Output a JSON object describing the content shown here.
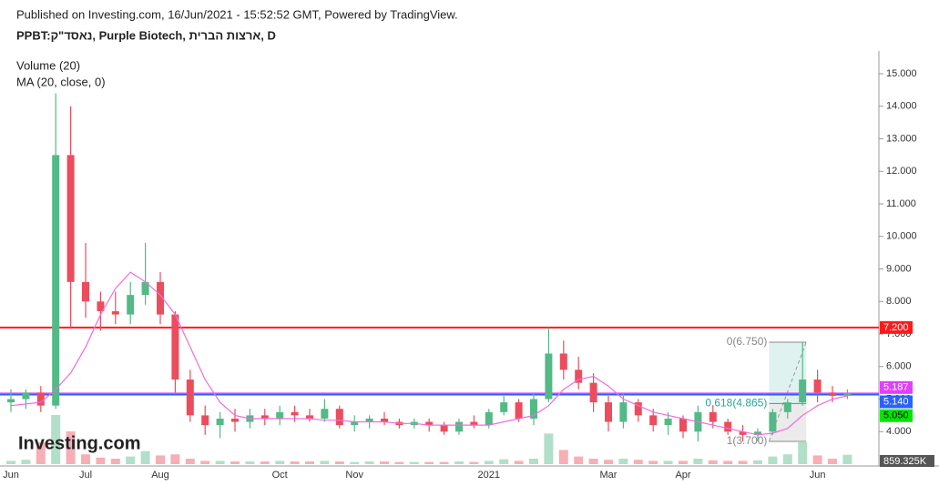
{
  "header": "Published on Investing.com, 16/Jun/2021 - 15:52:52 GMT, Powered by TradingView.",
  "symbol": "PPBT:נאסד\"ק, Purple Biotech, ארצות הברית, D",
  "logo": "Investing.com",
  "chart_data": {
    "type": "candlestick",
    "legend": [
      "Volume (20)",
      "MA (20, close, 0)"
    ],
    "categories": [
      "Jun",
      null,
      null,
      null,
      null,
      "Jul",
      null,
      null,
      null,
      null,
      "Aug",
      null,
      null,
      null,
      null,
      null,
      null,
      null,
      "Oct",
      null,
      null,
      null,
      null,
      "Nov",
      null,
      null,
      null,
      null,
      null,
      null,
      null,
      null,
      "2021",
      null,
      null,
      null,
      null,
      null,
      null,
      null,
      "Mar",
      null,
      null,
      null,
      null,
      "Apr",
      null,
      null,
      null,
      null,
      null,
      null,
      null,
      null,
      "Jun",
      null,
      null
    ],
    "open": [
      4.9,
      5.0,
      5.2,
      4.8,
      12.5,
      8.6,
      8.0,
      7.7,
      7.6,
      8.2,
      8.6,
      7.6,
      5.6,
      4.5,
      4.2,
      4.4,
      4.3,
      4.5,
      4.4,
      4.6,
      4.5,
      4.4,
      4.7,
      4.2,
      4.3,
      4.4,
      4.3,
      4.2,
      4.3,
      4.2,
      4.0,
      4.3,
      4.2,
      4.6,
      4.9,
      4.4,
      5.0,
      6.4,
      5.9,
      5.5,
      4.9,
      4.3,
      4.9,
      4.5,
      4.2,
      4.4,
      4.0,
      4.6,
      4.3,
      4.0,
      3.9,
      4.0,
      4.6,
      4.9,
      5.6,
      5.2,
      5.1
    ],
    "high": [
      5.3,
      5.3,
      5.4,
      14.4,
      14.0,
      9.8,
      8.3,
      8.3,
      8.6,
      9.8,
      8.9,
      7.7,
      5.9,
      4.8,
      4.6,
      4.7,
      4.7,
      4.7,
      4.8,
      4.8,
      4.7,
      5.0,
      4.8,
      4.5,
      4.5,
      4.6,
      4.4,
      4.4,
      4.4,
      4.3,
      4.4,
      4.5,
      4.7,
      5.1,
      5.0,
      5.2,
      7.2,
      6.8,
      6.3,
      5.8,
      5.1,
      5.2,
      5.0,
      4.7,
      4.6,
      4.5,
      4.8,
      4.8,
      4.4,
      4.2,
      4.1,
      4.7,
      5.0,
      6.75,
      5.9,
      5.4,
      5.3
    ],
    "low": [
      4.6,
      4.7,
      4.6,
      4.7,
      7.2,
      7.5,
      7.1,
      7.3,
      7.3,
      7.9,
      7.3,
      5.2,
      4.3,
      3.9,
      3.8,
      4.0,
      4.1,
      4.2,
      4.2,
      4.3,
      4.3,
      4.3,
      4.1,
      4.0,
      4.1,
      4.2,
      4.1,
      4.1,
      4.0,
      3.9,
      3.9,
      4.1,
      4.1,
      4.5,
      4.3,
      4.2,
      4.9,
      5.6,
      5.3,
      4.6,
      4.0,
      4.1,
      4.3,
      4.0,
      3.9,
      3.8,
      3.7,
      4.1,
      3.9,
      3.7,
      3.7,
      3.9,
      4.4,
      4.8,
      4.9,
      4.9,
      5.0
    ],
    "close": [
      5.0,
      5.2,
      4.8,
      12.5,
      8.6,
      8.0,
      7.7,
      7.6,
      8.2,
      8.6,
      7.6,
      5.6,
      4.5,
      4.2,
      4.4,
      4.3,
      4.5,
      4.4,
      4.6,
      4.5,
      4.4,
      4.7,
      4.2,
      4.3,
      4.4,
      4.3,
      4.2,
      4.3,
      4.2,
      4.0,
      4.3,
      4.2,
      4.6,
      4.9,
      4.4,
      5.0,
      6.4,
      5.9,
      5.5,
      4.9,
      4.3,
      4.9,
      4.5,
      4.2,
      4.4,
      4.0,
      4.6,
      4.3,
      4.0,
      3.9,
      4.0,
      4.6,
      4.9,
      5.6,
      5.2,
      5.1,
      5.187
    ],
    "ma": {
      "name": "MA (20, close, 0)",
      "color": "#f06cdc",
      "values": [
        4.8,
        4.85,
        4.9,
        5.3,
        5.8,
        6.6,
        7.6,
        8.4,
        8.9,
        8.6,
        8.2,
        7.6,
        6.6,
        5.6,
        4.9,
        4.5,
        4.4,
        4.4,
        4.4,
        4.4,
        4.4,
        4.35,
        4.35,
        4.3,
        4.3,
        4.3,
        4.25,
        4.25,
        4.2,
        4.2,
        4.2,
        4.2,
        4.2,
        4.3,
        4.4,
        4.5,
        4.8,
        5.3,
        5.6,
        5.7,
        5.4,
        5.0,
        4.8,
        4.6,
        4.5,
        4.4,
        4.3,
        4.2,
        4.1,
        4.0,
        3.9,
        3.95,
        4.1,
        4.5,
        4.8,
        5.0,
        5.1
      ]
    },
    "volume": [
      300,
      400,
      2000,
      4500,
      3000,
      900,
      600,
      500,
      700,
      1200,
      800,
      900,
      500,
      300,
      300,
      250,
      250,
      250,
      300,
      250,
      250,
      300,
      250,
      200,
      250,
      250,
      200,
      200,
      200,
      200,
      250,
      200,
      300,
      450,
      300,
      500,
      2800,
      1300,
      700,
      500,
      400,
      500,
      400,
      300,
      300,
      300,
      500,
      350,
      300,
      300,
      350,
      700,
      900,
      2000,
      800,
      500,
      860
    ],
    "vlim": [
      0,
      5000
    ],
    "volume_label": "859.325K",
    "up_color": "#53b987",
    "down_color": "#eb4d5c",
    "ylim": [
      3.0,
      15.7
    ],
    "yticks": [
      {
        "value": 4,
        "label": "4.000"
      },
      {
        "value": 5,
        "label": "5.000"
      },
      {
        "value": 6,
        "label": "6.000"
      },
      {
        "value": 7,
        "label": "7.000"
      },
      {
        "value": 8,
        "label": "8.000"
      },
      {
        "value": 9,
        "label": "9.000"
      },
      {
        "value": 10,
        "label": "10.000"
      },
      {
        "value": 11,
        "label": "11.000"
      },
      {
        "value": 12,
        "label": "12.000"
      },
      {
        "value": 13,
        "label": "13.000"
      },
      {
        "value": 14,
        "label": "14.000"
      },
      {
        "value": 15,
        "label": "15.000"
      }
    ],
    "price_labels": [
      {
        "value": 7.2,
        "label": "7.200",
        "color": "#ff1a1a",
        "line": true
      },
      {
        "value": 5.187,
        "label": "5.187",
        "color": "#e040fb",
        "line": true
      },
      {
        "value": 5.14,
        "label": "5.140",
        "color": "#2962ff",
        "line": true
      },
      {
        "value": 5.05,
        "label": "5.050",
        "color": "#00e600",
        "line": false
      }
    ],
    "fib": [
      {
        "value": 6.75,
        "label": "0(6.750)"
      },
      {
        "value": 4.865,
        "label": "0.618(4.865)"
      },
      {
        "value": 3.7,
        "label": "1(3.700)"
      }
    ]
  }
}
